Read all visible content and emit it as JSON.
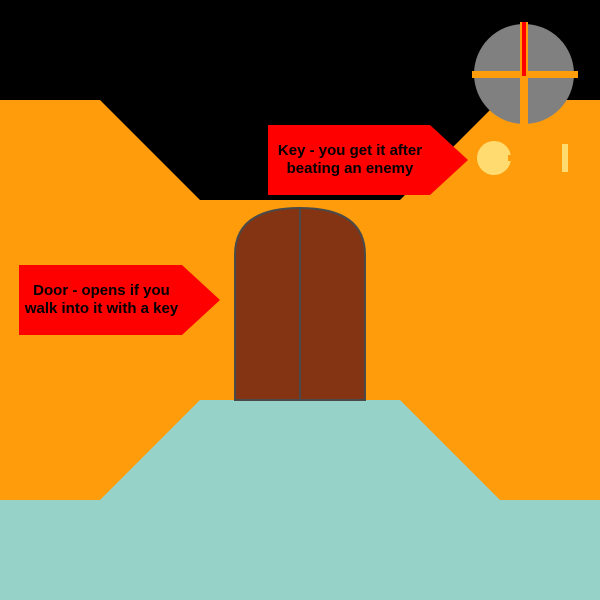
{
  "callouts": {
    "key": {
      "text": "Key - you get it after beating an enemy"
    },
    "door": {
      "text": "Door - opens if you walk into it with a key"
    }
  },
  "hud": {
    "crosshair": {
      "icon": "crosshair-icon"
    },
    "key_item": {
      "icon": "key-icon"
    }
  },
  "scene": {
    "door": {
      "icon": "double-door"
    }
  },
  "colors": {
    "sky": "#000000",
    "wall": "#ff9c0b",
    "floor": "#96d2c8",
    "door": "#843412",
    "door_frame": "#4a4a4a",
    "callout": "#ff0000",
    "crosshair_disc": "#808080",
    "crosshair_cross": "#ff9c0b",
    "crosshair_center": "#ff0000",
    "key": "#ffdb70",
    "key_shaft": "#ff9c0b"
  }
}
